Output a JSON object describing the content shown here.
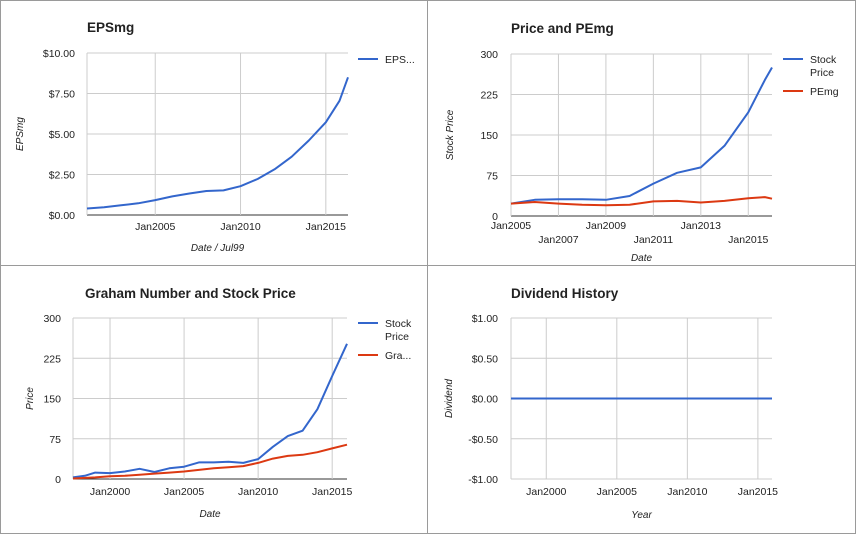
{
  "chart_data": [
    {
      "type": "line",
      "title": "EPSmg",
      "xlabel": "Date / Jul99",
      "ylabel": "EPSmg",
      "xlim": [
        2001,
        2016.3
      ],
      "ylim": [
        0,
        10
      ],
      "x_ticks": [
        {
          "value": 2005,
          "label": "Jan2005"
        },
        {
          "value": 2010,
          "label": "Jan2010"
        },
        {
          "value": 2015,
          "label": "Jan2015"
        }
      ],
      "y_ticks": [
        {
          "value": 0,
          "label": "$0.00"
        },
        {
          "value": 2.5,
          "label": "$2.50"
        },
        {
          "value": 5,
          "label": "$5.00"
        },
        {
          "value": 7.5,
          "label": "$7.50"
        },
        {
          "value": 10,
          "label": "$10.00"
        }
      ],
      "legend_position": "right",
      "grid": true,
      "series": [
        {
          "name": "EPS...",
          "color": "#3366cc",
          "x": [
            2001,
            2002,
            2003,
            2004,
            2005,
            2006,
            2007,
            2008,
            2009,
            2010,
            2011,
            2012,
            2013,
            2014,
            2015,
            2015.8,
            2016.3
          ],
          "y": [
            0.4,
            0.48,
            0.6,
            0.72,
            0.92,
            1.15,
            1.33,
            1.48,
            1.52,
            1.78,
            2.22,
            2.82,
            3.6,
            4.6,
            5.72,
            7.05,
            8.5
          ]
        }
      ]
    },
    {
      "type": "line",
      "title": "Price and PEmg",
      "xlabel": "Date",
      "ylabel": "Stock Price",
      "xlim": [
        2005,
        2016
      ],
      "ylim": [
        0,
        300
      ],
      "x_ticks": [
        {
          "value": 2005,
          "label": "Jan2005"
        },
        {
          "value": 2007,
          "label": "Jan2007"
        },
        {
          "value": 2009,
          "label": "Jan2009"
        },
        {
          "value": 2011,
          "label": "Jan2011"
        },
        {
          "value": 2013,
          "label": "Jan2013"
        },
        {
          "value": 2015,
          "label": "Jan2015"
        }
      ],
      "y_ticks": [
        {
          "value": 0,
          "label": "0"
        },
        {
          "value": 75,
          "label": "75"
        },
        {
          "value": 150,
          "label": "150"
        },
        {
          "value": 225,
          "label": "225"
        },
        {
          "value": 300,
          "label": "300"
        }
      ],
      "legend_position": "right",
      "grid": true,
      "series": [
        {
          "name": "Stock Price",
          "color": "#3366cc",
          "x": [
            2005,
            2006,
            2007,
            2008,
            2009,
            2010,
            2011,
            2012,
            2013,
            2014,
            2015,
            2015.7,
            2016
          ],
          "y": [
            23,
            30,
            31,
            31,
            30,
            37,
            60,
            80,
            90,
            130,
            192,
            252,
            275
          ]
        },
        {
          "name": "PEmg",
          "color": "#dc3912",
          "x": [
            2005,
            2006,
            2007,
            2008,
            2009,
            2010,
            2011,
            2012,
            2013,
            2014,
            2015,
            2015.7,
            2016
          ],
          "y": [
            23,
            26,
            23,
            21,
            20,
            21,
            27,
            28,
            25,
            28,
            33,
            35,
            32
          ]
        }
      ]
    },
    {
      "type": "line",
      "title": "Graham Number and Stock Price",
      "xlabel": "Date",
      "ylabel": "Price",
      "xlim": [
        1997.5,
        2016
      ],
      "ylim": [
        0,
        300
      ],
      "x_ticks": [
        {
          "value": 2000,
          "label": "Jan2000"
        },
        {
          "value": 2005,
          "label": "Jan2005"
        },
        {
          "value": 2010,
          "label": "Jan2010"
        },
        {
          "value": 2015,
          "label": "Jan2015"
        }
      ],
      "y_ticks": [
        {
          "value": 0,
          "label": "0"
        },
        {
          "value": 75,
          "label": "75"
        },
        {
          "value": 150,
          "label": "150"
        },
        {
          "value": 225,
          "label": "225"
        },
        {
          "value": 300,
          "label": "300"
        }
      ],
      "legend_position": "right",
      "grid": true,
      "series": [
        {
          "name": "Stock Price",
          "color": "#3366cc",
          "x": [
            1997.5,
            1998.3,
            1999,
            2000,
            2001,
            2002,
            2003,
            2004,
            2005,
            2006,
            2007,
            2008,
            2009,
            2010,
            2011,
            2012,
            2013,
            2014,
            2015,
            2016
          ],
          "y": [
            3,
            6,
            12,
            11,
            14,
            19,
            13,
            20,
            23,
            31,
            31,
            32,
            30,
            37,
            60,
            80,
            90,
            130,
            192,
            252
          ]
        },
        {
          "name": "Gra...",
          "color": "#dc3912",
          "x": [
            1997.5,
            1999,
            2000,
            2001,
            2002,
            2003,
            2004,
            2005,
            2006,
            2007,
            2008,
            2009,
            2010,
            2011,
            2012,
            2013,
            2014,
            2015,
            2016
          ],
          "y": [
            1,
            3,
            5,
            6,
            8,
            10,
            12,
            14,
            17,
            20,
            22,
            24,
            30,
            38,
            43,
            45,
            50,
            57,
            64
          ]
        }
      ]
    },
    {
      "type": "line",
      "title": "Dividend History",
      "xlabel": "Year",
      "ylabel": "Dividend",
      "xlim": [
        1997.5,
        2016
      ],
      "ylim": [
        -1,
        1
      ],
      "x_ticks": [
        {
          "value": 2000,
          "label": "Jan2000"
        },
        {
          "value": 2005,
          "label": "Jan2005"
        },
        {
          "value": 2010,
          "label": "Jan2010"
        },
        {
          "value": 2015,
          "label": "Jan2015"
        }
      ],
      "y_ticks": [
        {
          "value": -1,
          "label": "-$1.00"
        },
        {
          "value": -0.5,
          "label": "-$0.50"
        },
        {
          "value": 0,
          "label": "$0.00"
        },
        {
          "value": 0.5,
          "label": "$0.50"
        },
        {
          "value": 1,
          "label": "$1.00"
        }
      ],
      "grid": true,
      "series": [
        {
          "color": "#3366cc",
          "x": [
            1997.5,
            2016
          ],
          "y": [
            0,
            0
          ]
        }
      ]
    }
  ]
}
